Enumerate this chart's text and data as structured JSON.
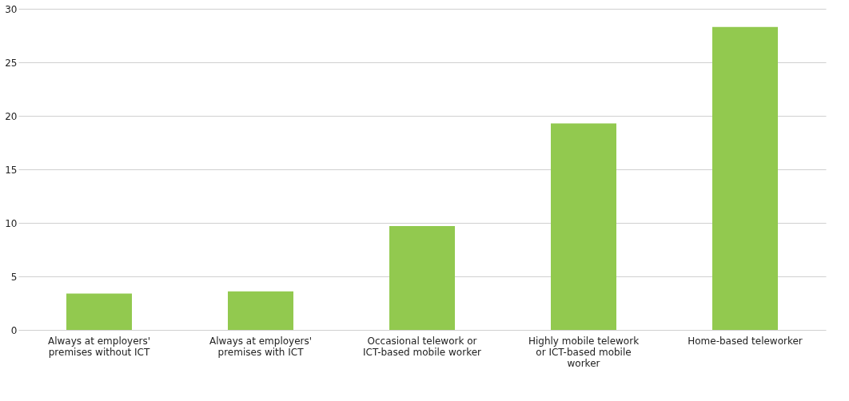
{
  "chart_data": {
    "type": "bar",
    "categories": [
      "Always at employers' premises without ICT",
      "Always at employers' premises with ICT",
      "Occasional telework or ICT-based mobile worker",
      "Highly mobile telework or ICT-based mobile worker",
      "Home-based teleworker"
    ],
    "values": [
      3.4,
      3.6,
      9.7,
      19.3,
      28.3
    ],
    "color": "#92c94f",
    "ylim": [
      0,
      30
    ],
    "yticks": [
      0,
      5,
      10,
      15,
      20,
      25,
      30
    ],
    "grid": "y"
  }
}
